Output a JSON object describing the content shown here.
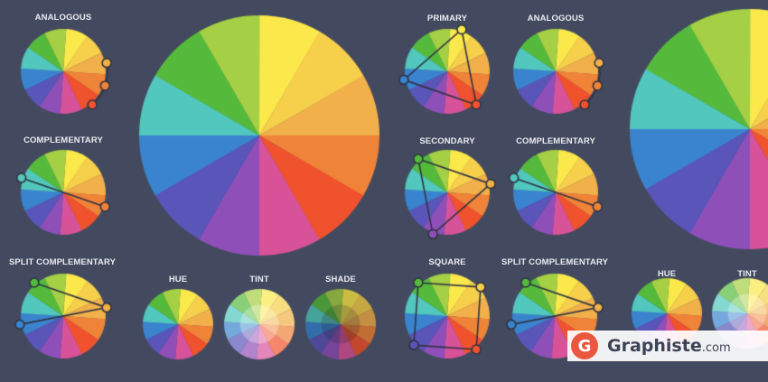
{
  "labels": {
    "analogous": "ANALOGOUS",
    "complementary": "COMPLEMENTARY",
    "split_complementary": "SPLIT COMPLEMENTARY",
    "primary": "PRIMARY",
    "secondary": "SECONDARY",
    "square": "SQUARE",
    "hue": "HUE",
    "tint": "TINT",
    "shade": "SHADE"
  },
  "brand": {
    "logo_letter": "G",
    "name": "Graphiste",
    "domain": ".com",
    "logo_color": "#e9573f"
  },
  "colors": {
    "background": "#434a5f",
    "label_text": "#e9ebf0",
    "wheel_hues": [
      "#fbe84b",
      "#f6cf4b",
      "#f1b04a",
      "#ef8338",
      "#f0522d",
      "#d85299",
      "#8f4fb8",
      "#5a55b8",
      "#3a84cf",
      "#51c7bd",
      "#55ba3c",
      "#a5cf44"
    ]
  },
  "icons": [
    "graphiste-logo-icon"
  ]
}
